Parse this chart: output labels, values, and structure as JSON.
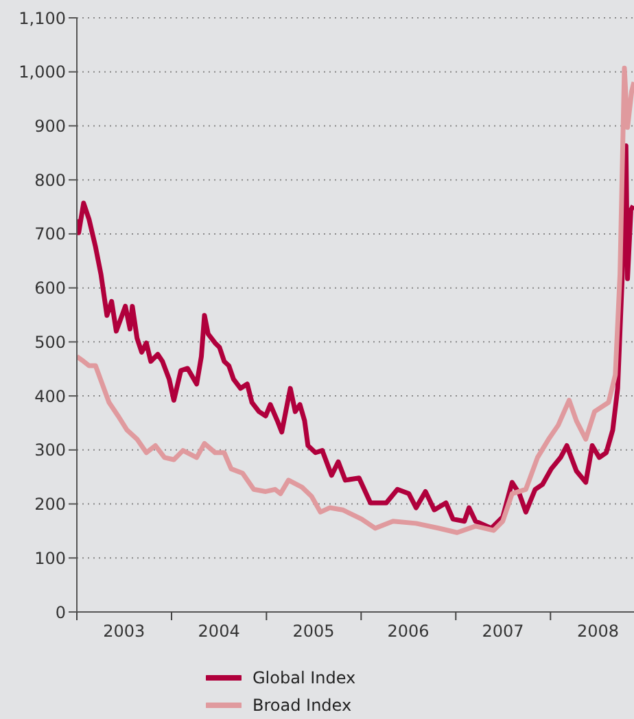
{
  "chart_data": {
    "type": "line",
    "xlim": [
      "2003-01-01",
      "2008-11-18"
    ],
    "ylim": [
      0,
      1100
    ],
    "xticks": [
      {
        "value": "2003-01-01",
        "label": null
      },
      {
        "value": "2003-07-02",
        "label": "2003"
      },
      {
        "value": "2004-01-01",
        "label": null
      },
      {
        "value": "2004-07-02",
        "label": "2004"
      },
      {
        "value": "2005-01-01",
        "label": null
      },
      {
        "value": "2005-07-02",
        "label": "2005"
      },
      {
        "value": "2006-01-01",
        "label": null
      },
      {
        "value": "2006-07-02",
        "label": "2006"
      },
      {
        "value": "2007-01-01",
        "label": null
      },
      {
        "value": "2007-07-02",
        "label": "2007"
      },
      {
        "value": "2008-01-01",
        "label": null
      },
      {
        "value": "2008-07-02",
        "label": "2008"
      }
    ],
    "yticks": [
      0,
      100,
      200,
      300,
      400,
      500,
      600,
      700,
      800,
      900,
      {
        "value": 1000,
        "label": "1,000"
      },
      {
        "value": 1100,
        "label": "1,100"
      }
    ],
    "grid": "y",
    "legend": "bottom",
    "marker": "none",
    "line_style": "solid",
    "series": [
      {
        "name": "Global Index",
        "color": "#b0003c",
        "x": [
          "2003-01-01",
          "2003-01-08",
          "2003-01-27",
          "2003-02-17",
          "2003-03-14",
          "2003-04-04",
          "2003-04-27",
          "2003-05-15",
          "2003-06-02",
          "2003-07-07",
          "2003-07-25",
          "2003-08-03",
          "2003-08-21",
          "2003-09-08",
          "2003-09-26",
          "2003-10-13",
          "2003-11-09",
          "2003-11-27",
          "2003-12-23",
          "2004-01-10",
          "2004-02-06",
          "2004-03-03",
          "2004-04-07",
          "2004-04-25",
          "2004-05-07",
          "2004-05-21",
          "2004-06-17",
          "2004-07-04",
          "2004-07-22",
          "2004-08-09",
          "2004-08-27",
          "2004-09-23",
          "2004-10-19",
          "2004-11-06",
          "2004-12-03",
          "2004-12-29",
          "2005-01-16",
          "2005-02-12",
          "2005-03-01",
          "2005-03-27",
          "2005-04-03",
          "2005-04-22",
          "2005-05-10",
          "2005-05-28",
          "2005-06-10",
          "2005-07-09",
          "2005-08-04",
          "2005-09-09",
          "2005-10-05",
          "2005-11-01",
          "2005-12-24",
          "2006-02-06",
          "2006-04-08",
          "2006-05-21",
          "2006-07-04",
          "2006-08-01",
          "2006-09-06",
          "2006-10-10",
          "2006-11-24",
          "2006-12-21",
          "2007-02-03",
          "2007-02-21",
          "2007-03-18",
          "2007-05-18",
          "2007-07-01",
          "2007-08-06",
          "2007-09-03",
          "2007-09-28",
          "2007-11-03",
          "2007-12-01",
          "2008-01-04",
          "2008-02-09",
          "2008-03-04",
          "2008-04-10",
          "2008-05-16",
          "2008-06-10",
          "2008-07-07",
          "2008-08-03",
          "2008-08-28",
          "2008-09-16",
          "2008-10-04",
          "2008-10-18",
          "2008-10-24",
          "2008-11-06",
          "2008-11-15"
        ],
        "values": [
          727,
          702,
          757,
          727,
          676,
          625,
          549,
          575,
          520,
          566,
          524,
          566,
          507,
          481,
          498,
          464,
          477,
          464,
          431,
          392,
          447,
          451,
          422,
          473,
          549,
          515,
          498,
          490,
          464,
          456,
          431,
          414,
          422,
          388,
          371,
          363,
          384,
          354,
          333,
          397,
          414,
          371,
          384,
          354,
          308,
          295,
          299,
          253,
          278,
          244,
          248,
          202,
          202,
          227,
          219,
          193,
          223,
          189,
          202,
          172,
          168,
          193,
          168,
          155,
          176,
          240,
          219,
          185,
          227,
          236,
          265,
          286,
          308,
          261,
          240,
          308,
          286,
          295,
          337,
          414,
          625,
          863,
          617,
          744,
          752
        ]
      },
      {
        "name": "Broad Index",
        "color": "#e09a9e",
        "x": [
          "2003-01-01",
          "2003-01-27",
          "2003-02-17",
          "2003-03-14",
          "2003-04-09",
          "2003-05-05",
          "2003-06-09",
          "2003-07-13",
          "2003-08-21",
          "2003-09-26",
          "2003-10-31",
          "2003-12-05",
          "2004-01-10",
          "2004-02-14",
          "2004-04-07",
          "2004-05-07",
          "2004-06-17",
          "2004-07-22",
          "2004-08-18",
          "2004-10-01",
          "2004-11-13",
          "2004-12-29",
          "2005-02-03",
          "2005-02-24",
          "2005-03-27",
          "2005-05-18",
          "2005-06-24",
          "2005-07-28",
          "2005-09-02",
          "2005-10-22",
          "2006-01-03",
          "2006-02-24",
          "2006-05-04",
          "2006-08-01",
          "2006-10-28",
          "2007-01-06",
          "2007-03-18",
          "2007-05-27",
          "2007-07-01",
          "2007-08-06",
          "2007-09-28",
          "2007-11-12",
          "2007-12-25",
          "2008-01-31",
          "2008-03-13",
          "2008-04-10",
          "2008-05-16",
          "2008-06-19",
          "2008-08-12",
          "2008-09-07",
          "2008-09-25",
          "2008-10-12",
          "2008-10-24",
          "2008-11-09",
          "2008-11-18"
        ],
        "values": [
          473,
          464,
          456,
          456,
          422,
          388,
          363,
          337,
          320,
          295,
          308,
          286,
          282,
          299,
          286,
          312,
          295,
          295,
          265,
          257,
          227,
          223,
          227,
          219,
          244,
          231,
          214,
          185,
          193,
          189,
          172,
          155,
          168,
          164,
          155,
          147,
          159,
          151,
          168,
          219,
          227,
          286,
          320,
          346,
          392,
          354,
          320,
          371,
          388,
          439,
          625,
          1007,
          897,
          964,
          981
        ]
      }
    ]
  }
}
